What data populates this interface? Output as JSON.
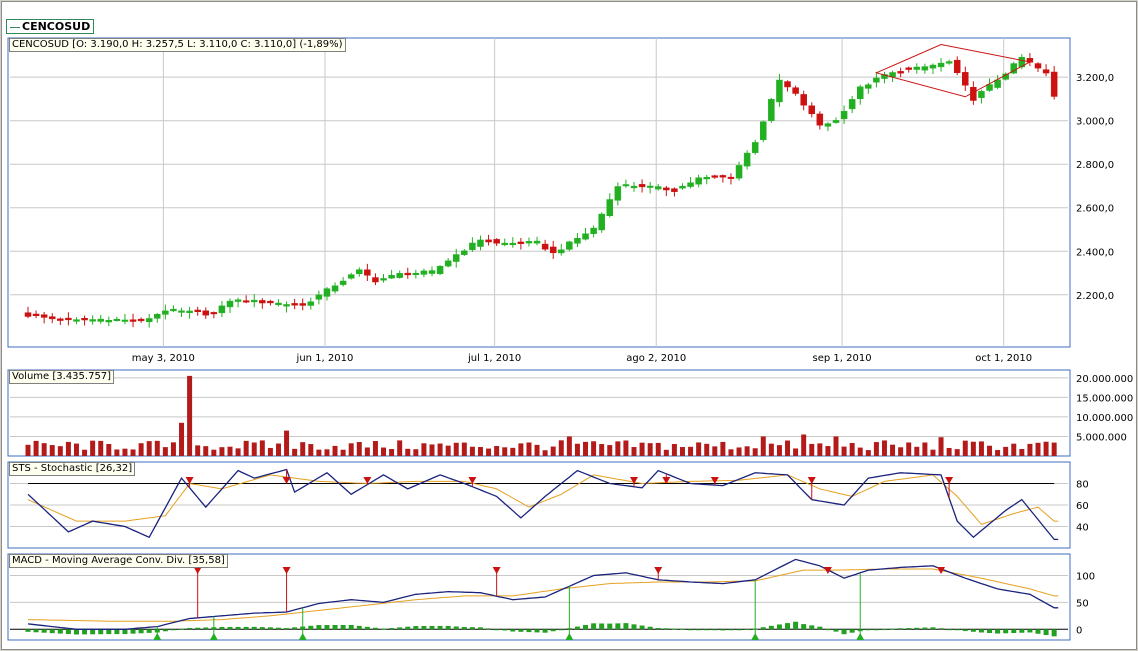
{
  "symbol": "CENCOSUD",
  "quote_label": "CENCOSUD [O: 3.190,0  H: 3.257,5  L: 3.110,0  C: 3.110,0] (-1,89%)",
  "volume_label": "Volume [3.435.757]",
  "stochastic_label": "STS - Stochastic [26,32]",
  "macd_label": "MACD - Moving Average Conv. Div. [35,58]",
  "colors": {
    "up": "#22b022",
    "down": "#cc1111",
    "volume": "#b31b1b",
    "main_line": "#1a237e",
    "signal_line": "#e6a020",
    "macd_hist": "#22a022",
    "grid": "#c8c8c8",
    "panel_border": "#3e6cc0",
    "pattern": "#cc1111"
  },
  "chart_data": [
    {
      "type": "candlestick",
      "title": "CENCOSUD",
      "x_tick_labels": [
        "may 3, 2010",
        "jun 1, 2010",
        "jul 1, 2010",
        "ago 2, 2010",
        "sep 1, 2010",
        "oct 1, 2010"
      ],
      "y_tick_labels": [
        "2.200,0",
        "2.400,0",
        "2.600,0",
        "2.800,0",
        "3.000,0",
        "3.200,0"
      ],
      "y_ticks": [
        2200,
        2400,
        2600,
        2800,
        3000,
        3200
      ],
      "ylim": [
        1960,
        3380
      ],
      "grid": true,
      "anchors": [
        [
          0,
          2105
        ],
        [
          5,
          2080
        ],
        [
          10,
          2090
        ],
        [
          14,
          2075
        ],
        [
          17,
          2130
        ],
        [
          23,
          2110
        ],
        [
          25,
          2175
        ],
        [
          30,
          2165
        ],
        [
          34,
          2150
        ],
        [
          38,
          2245
        ],
        [
          41,
          2310
        ],
        [
          43,
          2265
        ],
        [
          46,
          2295
        ],
        [
          50,
          2305
        ],
        [
          53,
          2385
        ],
        [
          56,
          2455
        ],
        [
          58,
          2435
        ],
        [
          63,
          2440
        ],
        [
          65,
          2390
        ],
        [
          70,
          2505
        ],
        [
          73,
          2705
        ],
        [
          76,
          2700
        ],
        [
          80,
          2680
        ],
        [
          83,
          2735
        ],
        [
          87,
          2740
        ],
        [
          90,
          2905
        ],
        [
          93,
          3185
        ],
        [
          95,
          3120
        ],
        [
          98,
          2980
        ],
        [
          100,
          3000
        ],
        [
          103,
          3150
        ],
        [
          106,
          3210
        ],
        [
          110,
          3240
        ],
        [
          114,
          3270
        ],
        [
          117,
          3100
        ],
        [
          121,
          3220
        ],
        [
          123,
          3290
        ],
        [
          126,
          3215
        ],
        [
          127,
          3110
        ]
      ],
      "pattern": [
        [
          105,
          3220
        ],
        [
          113,
          3350
        ],
        [
          124,
          3270
        ],
        [
          116,
          3110
        ]
      ]
    },
    {
      "type": "bar",
      "title": "Volume",
      "y_tick_labels": [
        "20.000.000",
        "15.000.000",
        "10.000.000",
        "5.000.000"
      ],
      "y_ticks": [
        20000000,
        15000000,
        10000000,
        5000000
      ],
      "ylim": [
        0,
        22000000
      ],
      "typical_volume": 3000000,
      "spikes": [
        [
          19,
          8500000
        ],
        [
          20,
          20500000
        ],
        [
          32,
          6500000
        ],
        [
          67,
          5000000
        ],
        [
          91,
          5000000
        ],
        [
          96,
          5500000
        ],
        [
          100,
          5000000
        ],
        [
          113,
          4800000
        ]
      ],
      "last_value": 3435757
    },
    {
      "type": "line",
      "title": "STS - Stochastic",
      "y_tick_labels": [
        "80",
        "60",
        "40"
      ],
      "y_ticks": [
        80,
        60,
        40
      ],
      "ylim": [
        20,
        100
      ],
      "reference_line": 80,
      "main_anchors": [
        [
          0,
          70
        ],
        [
          5,
          35
        ],
        [
          8,
          45
        ],
        [
          12,
          40
        ],
        [
          15,
          30
        ],
        [
          19,
          85
        ],
        [
          22,
          58
        ],
        [
          26,
          92
        ],
        [
          28,
          85
        ],
        [
          32,
          93
        ],
        [
          33,
          72
        ],
        [
          37,
          90
        ],
        [
          40,
          70
        ],
        [
          44,
          88
        ],
        [
          47,
          75
        ],
        [
          51,
          88
        ],
        [
          54,
          80
        ],
        [
          58,
          68
        ],
        [
          61,
          48
        ],
        [
          64,
          68
        ],
        [
          68,
          92
        ],
        [
          72,
          80
        ],
        [
          76,
          76
        ],
        [
          78,
          92
        ],
        [
          82,
          80
        ],
        [
          86,
          78
        ],
        [
          90,
          90
        ],
        [
          94,
          88
        ],
        [
          97,
          65
        ],
        [
          101,
          60
        ],
        [
          104,
          85
        ],
        [
          108,
          90
        ],
        [
          113,
          88
        ],
        [
          115,
          45
        ],
        [
          117,
          30
        ],
        [
          121,
          55
        ],
        [
          123,
          65
        ],
        [
          127,
          28
        ]
      ],
      "signal_anchors": [
        [
          0,
          65
        ],
        [
          6,
          45
        ],
        [
          12,
          45
        ],
        [
          17,
          50
        ],
        [
          20,
          80
        ],
        [
          24,
          75
        ],
        [
          30,
          88
        ],
        [
          36,
          82
        ],
        [
          42,
          80
        ],
        [
          48,
          82
        ],
        [
          54,
          82
        ],
        [
          58,
          75
        ],
        [
          62,
          58
        ],
        [
          66,
          70
        ],
        [
          70,
          88
        ],
        [
          76,
          80
        ],
        [
          82,
          82
        ],
        [
          88,
          83
        ],
        [
          94,
          88
        ],
        [
          98,
          75
        ],
        [
          102,
          68
        ],
        [
          106,
          82
        ],
        [
          112,
          88
        ],
        [
          115,
          68
        ],
        [
          118,
          42
        ],
        [
          122,
          52
        ],
        [
          125,
          58
        ],
        [
          127,
          45
        ]
      ],
      "sell_markers": [
        20,
        32,
        42,
        55,
        75,
        79,
        85,
        97,
        114
      ]
    },
    {
      "type": "line",
      "title": "MACD - Moving Average Conv. Div.",
      "y_tick_labels": [
        "100",
        "50",
        "0"
      ],
      "y_ticks": [
        100,
        50,
        0
      ],
      "ylim": [
        -20,
        140
      ],
      "macd_anchors": [
        [
          0,
          10
        ],
        [
          6,
          0
        ],
        [
          12,
          0
        ],
        [
          16,
          5
        ],
        [
          20,
          20
        ],
        [
          24,
          25
        ],
        [
          28,
          30
        ],
        [
          32,
          32
        ],
        [
          36,
          48
        ],
        [
          40,
          55
        ],
        [
          44,
          50
        ],
        [
          48,
          65
        ],
        [
          52,
          70
        ],
        [
          56,
          68
        ],
        [
          60,
          55
        ],
        [
          64,
          60
        ],
        [
          70,
          100
        ],
        [
          74,
          105
        ],
        [
          78,
          92
        ],
        [
          82,
          88
        ],
        [
          86,
          85
        ],
        [
          90,
          92
        ],
        [
          95,
          130
        ],
        [
          98,
          118
        ],
        [
          101,
          95
        ],
        [
          104,
          110
        ],
        [
          108,
          115
        ],
        [
          112,
          118
        ],
        [
          116,
          95
        ],
        [
          120,
          75
        ],
        [
          124,
          65
        ],
        [
          127,
          40
        ]
      ],
      "signal_anchors": [
        [
          0,
          18
        ],
        [
          10,
          15
        ],
        [
          18,
          15
        ],
        [
          24,
          18
        ],
        [
          30,
          25
        ],
        [
          36,
          35
        ],
        [
          42,
          45
        ],
        [
          48,
          55
        ],
        [
          54,
          62
        ],
        [
          60,
          62
        ],
        [
          66,
          75
        ],
        [
          72,
          85
        ],
        [
          78,
          88
        ],
        [
          84,
          88
        ],
        [
          90,
          90
        ],
        [
          96,
          110
        ],
        [
          100,
          110
        ],
        [
          106,
          112
        ],
        [
          112,
          112
        ],
        [
          118,
          95
        ],
        [
          124,
          75
        ],
        [
          127,
          62
        ]
      ],
      "sell_markers": [
        21,
        32,
        58,
        78,
        99,
        113
      ],
      "buy_markers": [
        16,
        23,
        34,
        67,
        90,
        103
      ]
    }
  ]
}
